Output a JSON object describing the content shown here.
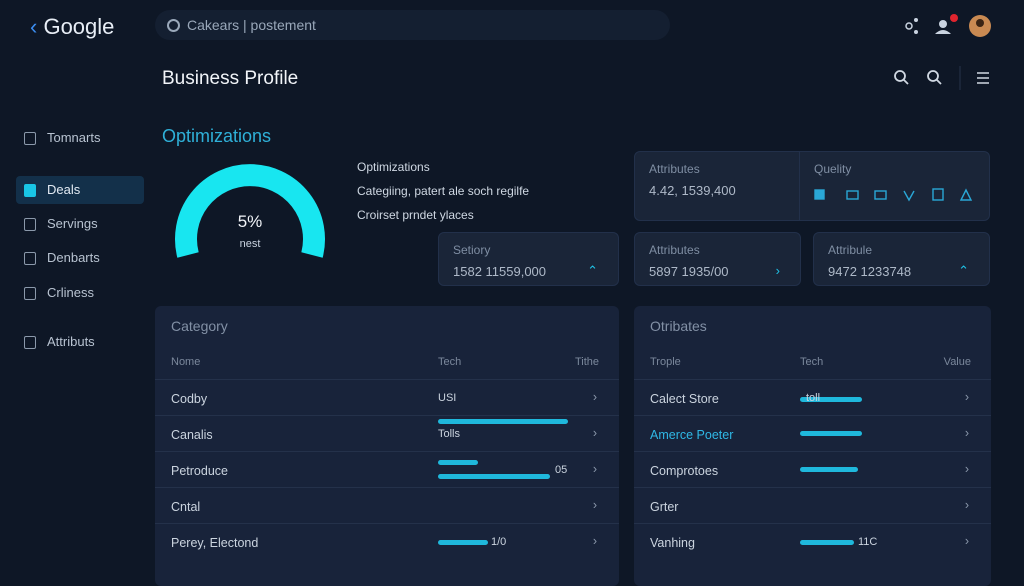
{
  "header": {
    "logo": "Google",
    "search": "Cakears | postement"
  },
  "page_title": "Business Profile",
  "sidebar": [
    "Tomnarts",
    "Deals",
    "Servings",
    "Denbarts",
    "Crliness",
    "Attributs"
  ],
  "section": "Optimizations",
  "gauge": {
    "value_label": "5%",
    "caption": "nest"
  },
  "info": [
    "Optimizations",
    "Categiing, patert ale soch regilfe",
    "Croirset prndet ylaces"
  ],
  "cards": [
    {
      "label": "Attributes",
      "value": "4.42, 1539,400"
    },
    {
      "label": "Quelity"
    },
    {
      "label": "Setiory",
      "value": "1582 11559,000"
    },
    {
      "label": "Attributes",
      "value": "5897 1935/00"
    },
    {
      "label": "Attribule",
      "value": "9472 1233748"
    }
  ],
  "left_table": {
    "title": "Category",
    "headers": [
      "Nome",
      "Tech",
      "Tithe"
    ],
    "rows": [
      {
        "name": "Codby",
        "tech": "USI"
      },
      {
        "name": "Canalis",
        "tech": "Tolls"
      },
      {
        "name": "Petroduce",
        "tech": "05"
      },
      {
        "name": "Cntal"
      },
      {
        "name": "Perey, Electond",
        "tech": "1/0"
      }
    ]
  },
  "right_table": {
    "title": "Otribates",
    "headers": [
      "Trople",
      "Tech",
      "Value"
    ],
    "rows": [
      {
        "name": "Calect Store",
        "tech": "toll"
      },
      {
        "name": "Amerce Poeter"
      },
      {
        "name": "Comprotoes"
      },
      {
        "name": "Grter"
      },
      {
        "name": "Vanhing",
        "tech": "11C"
      }
    ]
  }
}
